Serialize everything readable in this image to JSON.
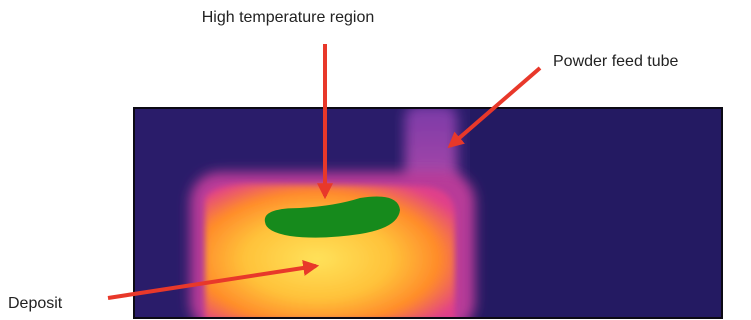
{
  "annotations": [
    {
      "label": "High temperature region"
    },
    {
      "label": "Powder feed tube"
    },
    {
      "label": "Deposit"
    }
  ]
}
